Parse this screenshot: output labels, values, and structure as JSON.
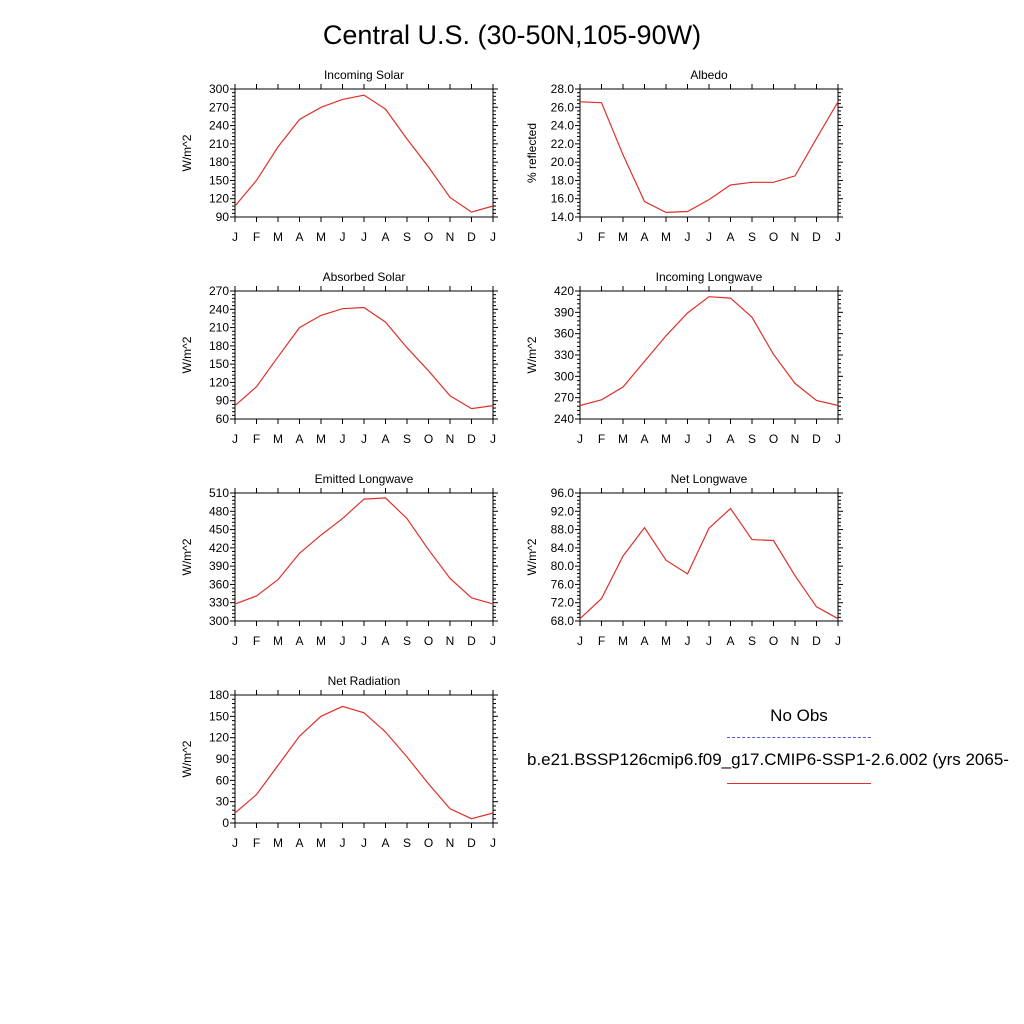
{
  "page": {
    "title": "Central U.S. (30-50N,105-90W)"
  },
  "legend": {
    "obs_label": "No Obs",
    "obs_color": "#5555dd",
    "model_label": "b.e21.BSSP126cmip6.f09_g17.CMIP6-SSP1-2.6.002 (yrs 2065-",
    "model_color": "#e0302a"
  },
  "chart_data": [
    {
      "type": "line",
      "title": "Incoming Solar",
      "ylabel": "W/m^2",
      "x": [
        "J",
        "F",
        "M",
        "A",
        "M",
        "J",
        "J",
        "A",
        "S",
        "O",
        "N",
        "D",
        "J"
      ],
      "ylim": [
        90,
        300
      ],
      "yticks": [
        "90",
        "120",
        "150",
        "180",
        "210",
        "240",
        "270",
        "300"
      ],
      "series": [
        {
          "values": [
            108,
            150,
            205,
            250,
            270,
            283,
            290,
            267,
            218,
            172,
            122,
            98,
            108
          ]
        }
      ]
    },
    {
      "type": "line",
      "title": "Albedo",
      "ylabel": "% reflected",
      "x": [
        "J",
        "F",
        "M",
        "A",
        "M",
        "J",
        "J",
        "A",
        "S",
        "O",
        "N",
        "D",
        "J"
      ],
      "ylim": [
        14.0,
        28.0
      ],
      "yticks": [
        "14.0",
        "16.0",
        "18.0",
        "20.0",
        "22.0",
        "24.0",
        "26.0",
        "28.0"
      ],
      "series": [
        {
          "values": [
            26.6,
            26.5,
            20.8,
            15.7,
            14.5,
            14.6,
            15.9,
            17.5,
            17.8,
            17.8,
            18.5,
            22.6,
            26.6
          ]
        }
      ]
    },
    {
      "type": "line",
      "title": "Absorbed Solar",
      "ylabel": "W/m^2",
      "x": [
        "J",
        "F",
        "M",
        "A",
        "M",
        "J",
        "J",
        "A",
        "S",
        "O",
        "N",
        "D",
        "J"
      ],
      "ylim": [
        60,
        270
      ],
      "yticks": [
        "60",
        "90",
        "120",
        "150",
        "180",
        "210",
        "240",
        "270"
      ],
      "series": [
        {
          "values": [
            82,
            113,
            162,
            210,
            230,
            241,
            243,
            219,
            177,
            139,
            98,
            77,
            82
          ]
        }
      ]
    },
    {
      "type": "line",
      "title": "Incoming Longwave",
      "ylabel": "W/m^2",
      "x": [
        "J",
        "F",
        "M",
        "A",
        "M",
        "J",
        "J",
        "A",
        "S",
        "O",
        "N",
        "D",
        "J"
      ],
      "ylim": [
        240,
        420
      ],
      "yticks": [
        "240",
        "270",
        "300",
        "330",
        "360",
        "390",
        "420"
      ],
      "series": [
        {
          "values": [
            259,
            267,
            285,
            321,
            357,
            389,
            412,
            410,
            383,
            331,
            290,
            266,
            259
          ]
        }
      ]
    },
    {
      "type": "line",
      "title": "Emitted Longwave",
      "ylabel": "W/m^2",
      "x": [
        "J",
        "F",
        "M",
        "A",
        "M",
        "J",
        "J",
        "A",
        "S",
        "O",
        "N",
        "D",
        "J"
      ],
      "ylim": [
        300,
        510
      ],
      "yticks": [
        "300",
        "330",
        "360",
        "390",
        "420",
        "450",
        "480",
        "510"
      ],
      "series": [
        {
          "values": [
            328,
            341,
            368,
            411,
            441,
            468,
            500,
            502,
            468,
            417,
            370,
            338,
            328
          ]
        }
      ]
    },
    {
      "type": "line",
      "title": "Net Longwave",
      "ylabel": "W/m^2",
      "x": [
        "J",
        "F",
        "M",
        "A",
        "M",
        "J",
        "J",
        "A",
        "S",
        "O",
        "N",
        "D",
        "J"
      ],
      "ylim": [
        68.0,
        96.0
      ],
      "yticks": [
        "68.0",
        "72.0",
        "76.0",
        "80.0",
        "84.0",
        "88.0",
        "92.0",
        "96.0"
      ],
      "series": [
        {
          "values": [
            68.5,
            72.9,
            82.2,
            88.4,
            81.3,
            78.3,
            88.3,
            92.6,
            85.8,
            85.6,
            77.9,
            71.1,
            68.5
          ]
        }
      ]
    },
    {
      "type": "line",
      "title": "Net Radiation",
      "ylabel": "W/m^2",
      "x": [
        "J",
        "F",
        "M",
        "A",
        "M",
        "J",
        "J",
        "A",
        "S",
        "O",
        "N",
        "D",
        "J"
      ],
      "ylim": [
        0,
        180
      ],
      "yticks": [
        "0",
        "30",
        "60",
        "90",
        "120",
        "150",
        "180"
      ],
      "series": [
        {
          "values": [
            14,
            40,
            81,
            122,
            150,
            164,
            155,
            128,
            93,
            55,
            20,
            6,
            14
          ]
        }
      ]
    }
  ]
}
